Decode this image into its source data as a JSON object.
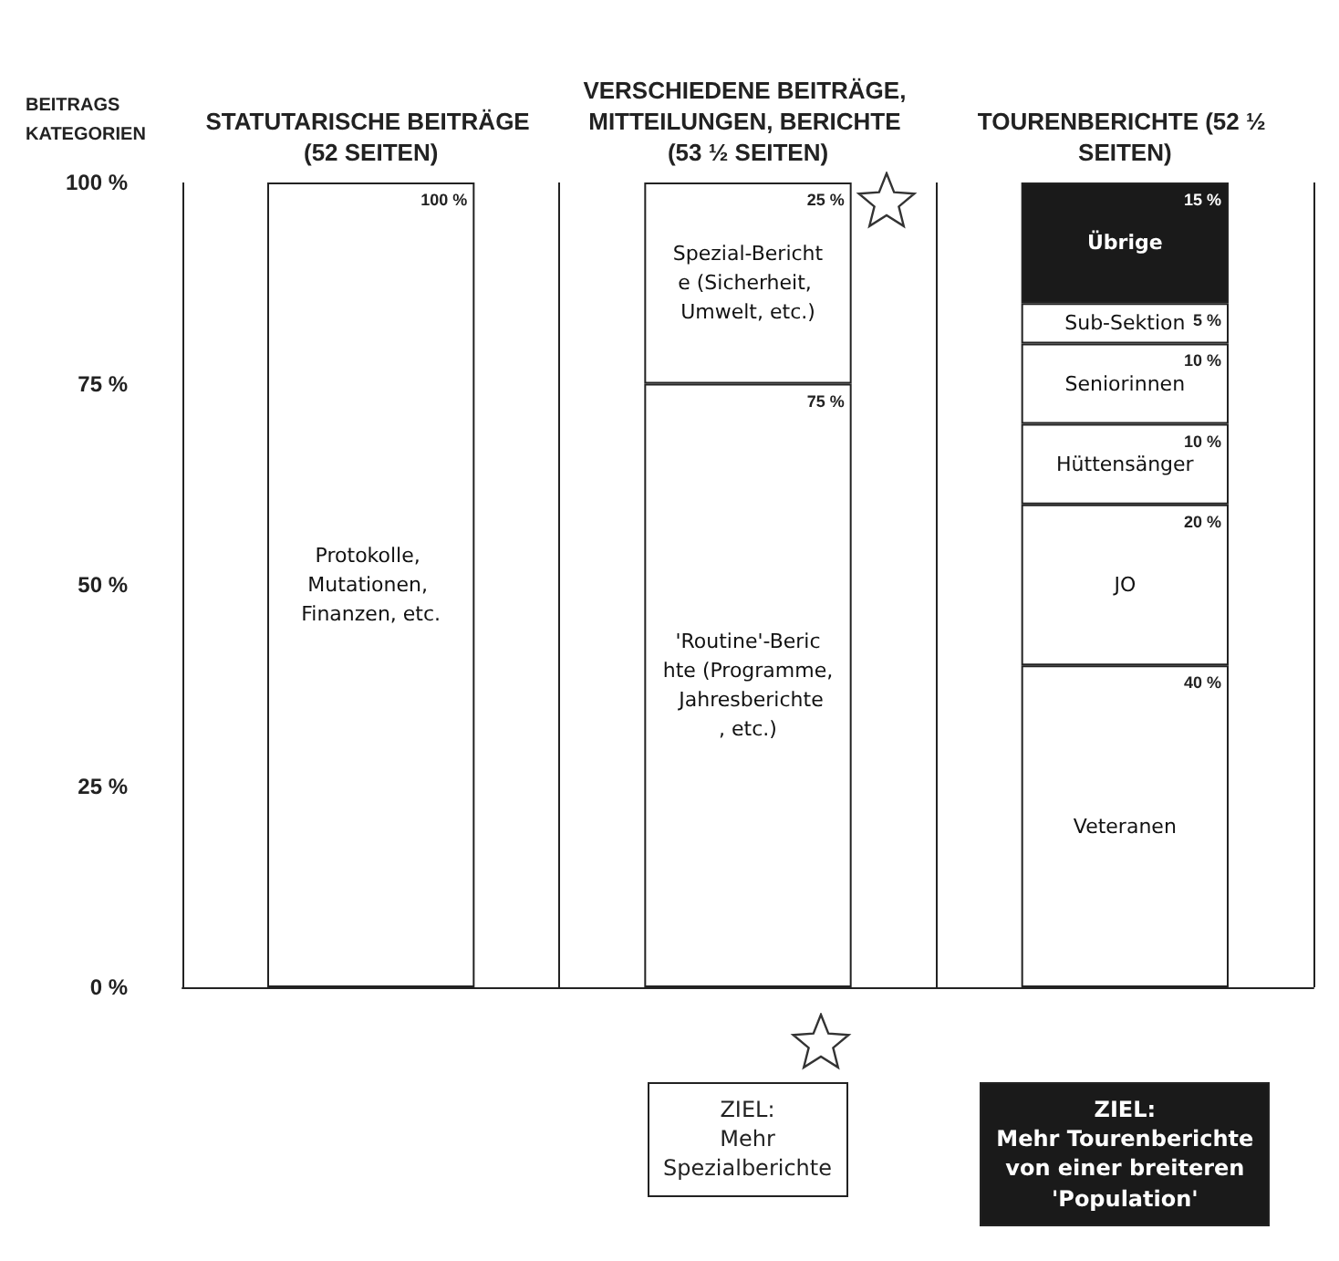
{
  "chart_data": {
    "type": "bar",
    "stacked": true,
    "ylabel": "BEITRAGS KATEGORIEN",
    "categories": [
      "STATUTARISCHE BEITRÄGE (52 SEITEN)",
      "VERSCHIEDENE BEITRÄGE, MITTEILUNGEN, BERICHTE (53 ½ SEITEN)",
      "TOURENBERICHTE (52 ½ SEITEN)"
    ],
    "ylim": [
      0,
      100
    ],
    "yticks": [
      {
        "value": 0,
        "label": "0 %"
      },
      {
        "value": 25,
        "label": "25 %"
      },
      {
        "value": 50,
        "label": "50 %"
      },
      {
        "value": 75,
        "label": "75 %"
      },
      {
        "value": 100,
        "label": "100 %"
      }
    ],
    "grid": "x",
    "legend": false,
    "series": [
      {
        "name": "Protokolle, Mutationen, Finanzen, etc.",
        "color": "#ffffff",
        "values": [
          100,
          null,
          null
        ],
        "value_labels": [
          "100 %",
          null,
          null
        ]
      },
      {
        "name": "'Routine'-Berichte (Programme, Jahresberichte, etc.)",
        "color": "#ffffff",
        "values": [
          null,
          75,
          null
        ],
        "value_labels": [
          null,
          "75 %",
          null
        ]
      },
      {
        "name": "Spezial-Berichte (Sicherheit, Umwelt, etc.)",
        "color": "#ffffff",
        "values": [
          null,
          25,
          null
        ],
        "value_labels": [
          null,
          "25 %",
          null
        ]
      },
      {
        "name": "Veteranen",
        "color": "#ffffff",
        "values": [
          null,
          null,
          40
        ],
        "value_labels": [
          null,
          null,
          "40 %"
        ]
      },
      {
        "name": "JO",
        "color": "#ffffff",
        "values": [
          null,
          null,
          20
        ],
        "value_labels": [
          null,
          null,
          "20 %"
        ]
      },
      {
        "name": "Hüttensänger",
        "color": "#ffffff",
        "values": [
          null,
          null,
          10
        ],
        "value_labels": [
          null,
          null,
          "10 %"
        ]
      },
      {
        "name": "Seniorinnen",
        "color": "#ffffff",
        "values": [
          null,
          null,
          10
        ],
        "value_labels": [
          null,
          null,
          "10 %"
        ]
      },
      {
        "name": "Sub-Sektion",
        "color": "#ffffff",
        "values": [
          null,
          null,
          5
        ],
        "value_labels": [
          null,
          null,
          "5 %"
        ]
      },
      {
        "name": "Übrige",
        "color": "#1a1a1a",
        "values": [
          null,
          null,
          15
        ],
        "value_labels": [
          null,
          null,
          "15 %"
        ]
      }
    ],
    "annotations": [
      "ZIEL:\nMehr\nSpezialberichte",
      "ZIEL:\nMehr Tourenberichte\nvon einer breiteren\n'Population'"
    ]
  }
}
